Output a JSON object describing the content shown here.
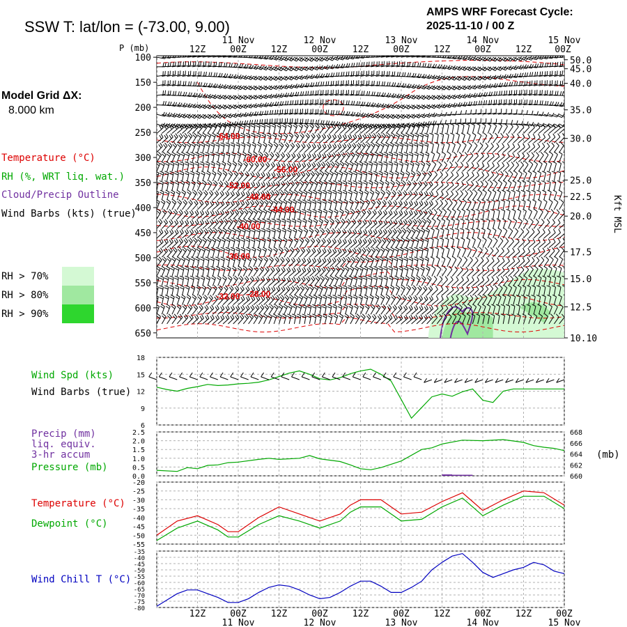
{
  "header": {
    "station": "SSW T:  lat/lon = (-73.00,   9.00)",
    "cycle_line1": "AMPS WRF Forecast Cycle:",
    "cycle_line2": "2025-11-10 / 00  Z"
  },
  "grid_info": {
    "line1": "Model Grid ΔX:",
    "line2": "8.000 km"
  },
  "colors": {
    "temperature": "#dd0000",
    "rh": "#00a800",
    "cloud": "#7030a0",
    "wind": "#000000",
    "wind_chill": "#0000c0",
    "rh70": "#d4f9d4",
    "rh80": "#a0e8a0",
    "rh90": "#2ed62e",
    "grid": "#b0b0b0"
  },
  "time_axis": {
    "ticks_top": [
      "12Z",
      "00Z",
      "12Z",
      "00Z",
      "12Z",
      "00Z",
      "12Z",
      "00Z",
      "12Z",
      "00Z"
    ],
    "day_labels": [
      "11 Nov",
      "12 Nov",
      "13 Nov",
      "14 Nov",
      "15 Nov"
    ],
    "p_unit": "P (mb)"
  },
  "legend": {
    "temperature": "Temperature (°C)",
    "rh": "RH (%, WRT liq. wat.)",
    "cloud": "Cloud/Precip Outline",
    "wind": "Wind Barbs (kts) (true)",
    "rh70": "RH > 70%",
    "rh80": "RH > 80%",
    "rh90": "RH > 90%"
  },
  "panel_labels": {
    "wind_spd": "Wind Spd (kts)",
    "wind_barbs": "Wind Barbs (true)",
    "precip1": "Precip (mm)",
    "precip2": "liq. equiv.",
    "precip3": "3-hr accum",
    "pressure": "Pressure (mb)",
    "pressure_unit": "(mb)",
    "temperature": "Temperature (°C)",
    "dewpoint": "Dewpoint (°C)",
    "wind_chill": "Wind Chill T (°C)",
    "kft_msl": "Kft MSL"
  },
  "chart_data": [
    {
      "type": "time-height cross section",
      "title": "SSW T:  lat/lon = (-73.00,   9.00)",
      "x_hours": [
        0,
        120
      ],
      "p_levels": [
        "100",
        "150",
        "200",
        "250",
        "300",
        "350",
        "400",
        "450",
        "500",
        "550",
        "600",
        "650"
      ],
      "height_labels_kft": [
        {
          "p": 105,
          "label": "50.0"
        },
        {
          "p": 123,
          "label": "45.0"
        },
        {
          "p": 152,
          "label": "40.0"
        },
        {
          "p": 205,
          "label": "35.0"
        },
        {
          "p": 262,
          "label": "30.0"
        },
        {
          "p": 345,
          "label": "25.0"
        },
        {
          "p": 378,
          "label": "22.5"
        },
        {
          "p": 417,
          "label": "20.0"
        },
        {
          "p": 488,
          "label": "17.5"
        },
        {
          "p": 542,
          "label": "15.0"
        },
        {
          "p": 598,
          "label": "12.5"
        },
        {
          "p": 660,
          "label": "10.10"
        }
      ],
      "isotherms": [
        {
          "label": "-64.00",
          "x": 21,
          "p": 263
        },
        {
          "label": "-60.00",
          "x": 29,
          "p": 310
        },
        {
          "label": "-56.00",
          "x": 38,
          "p": 330
        },
        {
          "label": "-52.00",
          "x": 24,
          "p": 362
        },
        {
          "label": "-48.00",
          "x": 30,
          "p": 384
        },
        {
          "label": "-44.00",
          "x": 37,
          "p": 410
        },
        {
          "label": "-40.00",
          "x": 27,
          "p": 443
        },
        {
          "label": "-36.00",
          "x": 24,
          "p": 503
        },
        {
          "label": "-32.00",
          "x": 21,
          "p": 583
        },
        {
          "label": "-28.00",
          "x": 30,
          "p": 578
        }
      ]
    },
    {
      "type": "line",
      "title": "Wind Spd (kts)",
      "y_ticks": [
        "18",
        "15",
        "12",
        "9",
        "6"
      ],
      "ylim": [
        6,
        18
      ],
      "x": [
        0,
        3,
        6,
        9,
        12,
        15,
        18,
        21,
        24,
        27,
        30,
        33,
        36,
        39,
        42,
        45,
        48,
        51,
        54,
        57,
        60,
        63,
        66,
        69,
        72,
        75,
        78,
        81,
        84,
        87,
        90,
        93,
        96,
        99,
        102,
        105,
        108,
        111,
        114,
        117,
        120
      ],
      "values": [
        12.7,
        12.3,
        12.0,
        12.5,
        12.8,
        13.2,
        13.0,
        13.1,
        13.3,
        13.4,
        13.6,
        14.0,
        14.6,
        15.2,
        15.6,
        15.0,
        14.2,
        14.0,
        14.4,
        15.1,
        15.6,
        15.9,
        15.0,
        13.8,
        10.5,
        7.2,
        9.1,
        11.0,
        11.5,
        11.1,
        11.9,
        12.4,
        10.4,
        10.0,
        12.0,
        12.4,
        12.4,
        12.4,
        12.4,
        12.4,
        12.4
      ]
    },
    {
      "type": "line",
      "title": "Precip (mm) liq. equiv. 3-hr accum / Pressure (mb)",
      "precip_y_ticks": [
        "2.5",
        "2.0",
        "1.5",
        "1.0",
        "0.5",
        "0.0"
      ],
      "pressure_y_ticks": [
        "668",
        "666",
        "664",
        "662",
        "660"
      ],
      "precip_ylim": [
        0,
        2.5
      ],
      "pressure_ylim": [
        660,
        668
      ],
      "pressure_x": [
        0,
        6,
        9,
        12,
        15,
        18,
        21,
        24,
        30,
        33,
        36,
        42,
        45,
        48,
        54,
        57,
        60,
        63,
        66,
        72,
        78,
        81,
        84,
        90,
        96,
        102,
        108,
        111,
        114,
        117,
        120
      ],
      "pressure_values": [
        661.0,
        660.8,
        661.5,
        661.3,
        661.9,
        662.0,
        662.4,
        662.5,
        663.0,
        663.2,
        663.0,
        663.2,
        663.7,
        663.1,
        662.6,
        662.0,
        661.3,
        661.1,
        661.5,
        662.7,
        664.8,
        665.1,
        665.8,
        666.5,
        666.4,
        666.6,
        666.1,
        665.5,
        665.2,
        665.0,
        664.6
      ],
      "precip_x": [
        84,
        87,
        90,
        93
      ],
      "precip_values": [
        0.08,
        0.06,
        0.06,
        0.0
      ]
    },
    {
      "type": "line",
      "title": "Temperature / Dewpoint (°C)",
      "y_ticks": [
        "-20",
        "-25",
        "-30",
        "-35",
        "-40",
        "-45",
        "-50",
        "-55"
      ],
      "ylim": [
        -55,
        -20
      ],
      "series": [
        {
          "name": "Temperature",
          "x": [
            0,
            6,
            12,
            18,
            21,
            24,
            30,
            36,
            42,
            48,
            54,
            57,
            60,
            66,
            72,
            78,
            84,
            90,
            93,
            96,
            102,
            108,
            114,
            120
          ],
          "values": [
            -50,
            -42,
            -39,
            -44,
            -48,
            -48,
            -40,
            -34,
            -38,
            -42,
            -38,
            -33,
            -30,
            -30,
            -38,
            -37,
            -31,
            -26,
            -31,
            -36,
            -30,
            -25,
            -26,
            -33
          ]
        },
        {
          "name": "Dewpoint",
          "x": [
            0,
            6,
            12,
            18,
            21,
            24,
            30,
            36,
            42,
            48,
            54,
            57,
            60,
            66,
            72,
            78,
            84,
            90,
            93,
            96,
            102,
            108,
            114,
            120
          ],
          "values": [
            -53,
            -46,
            -42,
            -47,
            -51,
            -51,
            -44,
            -39,
            -42,
            -46,
            -42,
            -37,
            -34,
            -34,
            -42,
            -41,
            -34,
            -29,
            -34,
            -39,
            -33,
            -28,
            -28,
            -35
          ]
        }
      ]
    },
    {
      "type": "line",
      "title": "Wind Chill T (°C)",
      "y_ticks": [
        "-35",
        "-40",
        "-45",
        "-50",
        "-55",
        "-60",
        "-65",
        "-70",
        "-75",
        "-80"
      ],
      "ylim": [
        -80,
        -35
      ],
      "x": [
        0,
        3,
        6,
        9,
        12,
        15,
        18,
        21,
        24,
        27,
        30,
        33,
        36,
        39,
        42,
        45,
        48,
        51,
        54,
        57,
        60,
        63,
        66,
        69,
        72,
        75,
        78,
        81,
        84,
        87,
        90,
        93,
        96,
        99,
        102,
        105,
        108,
        111,
        114,
        117,
        120
      ],
      "values": [
        -79,
        -74,
        -69,
        -66,
        -66,
        -69,
        -72,
        -76,
        -76,
        -73,
        -68,
        -64,
        -62,
        -63,
        -66,
        -70,
        -73,
        -72,
        -68,
        -63,
        -59,
        -59,
        -63,
        -68,
        -68,
        -64,
        -59,
        -50,
        -44,
        -39,
        -37,
        -44,
        -52,
        -56,
        -53,
        -50,
        -48,
        -44,
        -46,
        -51,
        -53
      ]
    }
  ]
}
